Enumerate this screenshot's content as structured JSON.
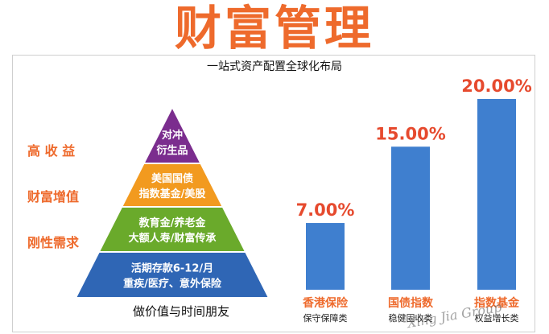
{
  "page": {
    "title": "财富管理",
    "subtitle": "一站式资产配置全球化布局"
  },
  "pyramid": {
    "tiers": [
      {
        "line1": "对冲",
        "line2": "衍生品",
        "side": "高 收 益",
        "color": "#7b2d8e"
      },
      {
        "line1": "美国国债",
        "line2": "指数基金/美股",
        "side": "财富增值",
        "color": "#f29a1f"
      },
      {
        "line1": "教育金/养老金",
        "line2": "大额人寿/财富传承",
        "side": "刚性需求",
        "color": "#6aaa2b"
      },
      {
        "line1": "活期存款6-12/月",
        "line2": "重疾/医疗、意外保险",
        "side": "",
        "color": "#2f66b5"
      }
    ],
    "caption": "做价值与时间朋友"
  },
  "chart_data": {
    "type": "bar",
    "categories": [
      "香港保险",
      "国债指数",
      "指数基金"
    ],
    "sublabels": [
      "保守保障类",
      "稳健固收类",
      "权益增长类"
    ],
    "values": [
      7.0,
      15.0,
      20.0
    ],
    "value_labels": [
      "7.00%",
      "15.00%",
      "20.00%"
    ],
    "ylim": [
      0,
      20
    ],
    "bar_color": "#3f7fcf",
    "value_label_color": "#e64a2e",
    "category_color": "#ee6a2c",
    "grid": false,
    "title": "",
    "xlabel": "",
    "ylabel": ""
  },
  "watermark": "Xing Jia Group"
}
